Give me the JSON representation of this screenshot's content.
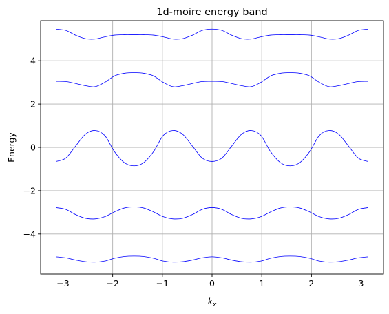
{
  "chart_data": {
    "type": "line",
    "title": "1d-moire energy band",
    "xlabel_main": "k",
    "xlabel_sub": "x",
    "ylabel": "Energy",
    "xlim": [
      -3.45,
      3.45
    ],
    "ylim": [
      -5.85,
      5.85
    ],
    "xticks": [
      -3,
      -2,
      -1,
      0,
      1,
      2,
      3
    ],
    "xtick_labels": [
      "−3",
      "−2",
      "−1",
      "0",
      "1",
      "2",
      "3"
    ],
    "yticks": [
      -4,
      -2,
      0,
      2,
      4
    ],
    "ytick_labels": [
      "−4",
      "−2",
      "0",
      "2",
      "4"
    ],
    "grid": true,
    "line_color": "#0000ff",
    "x": [
      -3.1416,
      -2.9452,
      -2.7489,
      -2.5525,
      -2.3562,
      -2.1598,
      -1.9635,
      -1.7671,
      -1.5708,
      -1.3744,
      -1.1781,
      -0.9817,
      -0.7854,
      -0.589,
      -0.3927,
      -0.1963,
      0,
      0.1963,
      0.3927,
      0.589,
      0.7854,
      0.9817,
      1.1781,
      1.3744,
      1.5708,
      1.7671,
      1.9635,
      2.1598,
      2.3562,
      2.5525,
      2.7489,
      2.9452,
      3.1416
    ],
    "series": [
      {
        "values": [
          5.46,
          5.4,
          5.18,
          5.02,
          5.0,
          5.1,
          5.18,
          5.2,
          5.2,
          5.2,
          5.18,
          5.1,
          5.0,
          5.02,
          5.18,
          5.4,
          5.46,
          5.4,
          5.18,
          5.02,
          5.0,
          5.1,
          5.18,
          5.2,
          5.2,
          5.2,
          5.18,
          5.1,
          5.0,
          5.02,
          5.18,
          5.4,
          5.46
        ]
      },
      {
        "values": [
          3.05,
          3.04,
          2.95,
          2.85,
          2.8,
          3.0,
          3.3,
          3.42,
          3.45,
          3.42,
          3.3,
          3.0,
          2.8,
          2.85,
          2.95,
          3.04,
          3.05,
          3.04,
          2.95,
          2.85,
          2.8,
          3.0,
          3.3,
          3.42,
          3.45,
          3.42,
          3.3,
          3.0,
          2.8,
          2.85,
          2.95,
          3.04,
          3.05
        ]
      },
      {
        "values": [
          -0.65,
          -0.5,
          0.05,
          0.6,
          0.78,
          0.55,
          -0.2,
          -0.7,
          -0.85,
          -0.7,
          -0.2,
          0.55,
          0.78,
          0.6,
          0.05,
          -0.5,
          -0.65,
          -0.5,
          0.05,
          0.6,
          0.78,
          0.55,
          -0.2,
          -0.7,
          -0.85,
          -0.7,
          -0.2,
          0.55,
          0.78,
          0.6,
          0.05,
          -0.5,
          -0.65
        ]
      },
      {
        "values": [
          -2.78,
          -2.86,
          -3.1,
          -3.27,
          -3.3,
          -3.2,
          -2.98,
          -2.8,
          -2.75,
          -2.8,
          -2.98,
          -3.2,
          -3.3,
          -3.27,
          -3.1,
          -2.86,
          -2.78,
          -2.86,
          -3.1,
          -3.27,
          -3.3,
          -3.2,
          -2.98,
          -2.8,
          -2.75,
          -2.8,
          -2.98,
          -3.2,
          -3.3,
          -3.27,
          -3.1,
          -2.86,
          -2.78
        ]
      },
      {
        "values": [
          -5.05,
          -5.1,
          -5.2,
          -5.28,
          -5.3,
          -5.25,
          -5.12,
          -5.04,
          -5.02,
          -5.04,
          -5.12,
          -5.25,
          -5.3,
          -5.28,
          -5.2,
          -5.1,
          -5.05,
          -5.1,
          -5.2,
          -5.28,
          -5.3,
          -5.25,
          -5.12,
          -5.04,
          -5.02,
          -5.04,
          -5.12,
          -5.25,
          -5.3,
          -5.28,
          -5.2,
          -5.1,
          -5.05
        ]
      }
    ]
  }
}
